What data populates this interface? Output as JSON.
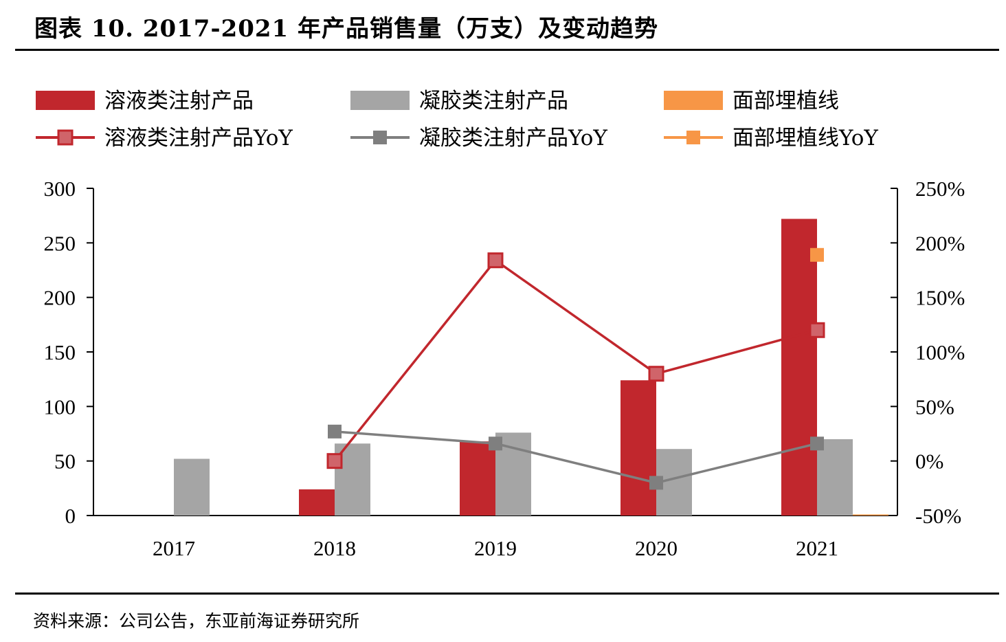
{
  "title": "图表 10. 2017-2021 年产品销售量（万支）及变动趋势",
  "source": "资料来源：公司公告，东亚前海证券研究所",
  "colors": {
    "red": "#C1272D",
    "gray": "#A5A5A5",
    "orange": "#F79646",
    "yoy_gray": "#7F7F7F"
  },
  "chart_data": {
    "type": "bar",
    "categories": [
      "2017",
      "2018",
      "2019",
      "2020",
      "2021"
    ],
    "series": [
      {
        "name": "溶液类注射产品",
        "kind": "bar",
        "axis": "left",
        "color": "#C1272D",
        "values": [
          0,
          24,
          68,
          124,
          272
        ]
      },
      {
        "name": "凝胶类注射产品",
        "kind": "bar",
        "axis": "left",
        "color": "#A5A5A5",
        "values": [
          52,
          66,
          76,
          61,
          70
        ]
      },
      {
        "name": "面部埋植线",
        "kind": "bar",
        "axis": "left",
        "color": "#F79646",
        "values": [
          null,
          null,
          null,
          null,
          1
        ]
      },
      {
        "name": "溶液类注射产品YoY",
        "kind": "line",
        "axis": "right",
        "color": "#C1272D",
        "values": [
          null,
          0.0,
          1.84,
          0.8,
          1.2
        ]
      },
      {
        "name": "凝胶类注射产品YoY",
        "kind": "line",
        "axis": "right",
        "color": "#7F7F7F",
        "values": [
          null,
          0.27,
          0.16,
          -0.2,
          0.16
        ]
      },
      {
        "name": "面部埋植线YoY",
        "kind": "line",
        "axis": "right",
        "color": "#F79646",
        "values": [
          null,
          null,
          null,
          null,
          1.89
        ]
      }
    ],
    "y_left": {
      "min": 0,
      "max": 300,
      "ticks": [
        "0",
        "50",
        "100",
        "150",
        "200",
        "250",
        "300"
      ]
    },
    "y_right": {
      "min": -0.5,
      "max": 2.5,
      "ticks": [
        "-50%",
        "0%",
        "50%",
        "100%",
        "150%",
        "200%",
        "250%"
      ]
    },
    "grid": false,
    "legend_position": "top"
  }
}
